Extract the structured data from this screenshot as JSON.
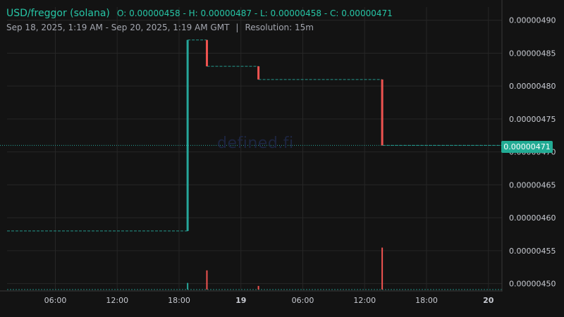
{
  "header": {
    "pair": "USD/freggor (solana)",
    "ohlc": "O: 0.00000458 - H: 0.00000487 - L: 0.00000458 - C: 0.00000471",
    "range": "Sep 18, 2025, 1:19 AM - Sep 20, 2025, 1:19 AM GMT",
    "separator": "|",
    "resolution": "Resolution: 15m"
  },
  "watermark": "defined.fi",
  "last_price_label": "0.00000471",
  "colors": {
    "background": "#131313",
    "up": "#26a69a",
    "down": "#ef5350",
    "grid": "#262626",
    "price_tag": "#22ab94"
  },
  "chart_data": {
    "type": "candlestick",
    "y_axis": {
      "ticks": [
        "0.00000450",
        "0.00000455",
        "0.00000460",
        "0.00000465",
        "0.00000470",
        "0.00000475",
        "0.00000480",
        "0.00000485",
        "0.00000490"
      ],
      "range": [
        4.49e-06,
        4.92e-06
      ]
    },
    "x_axis": {
      "ticks": [
        "06:00",
        "12:00",
        "18:00",
        "19",
        "06:00",
        "12:00",
        "18:00",
        "20"
      ],
      "range_hours": [
        1.317,
        49.317
      ]
    },
    "last_price": 4.71e-06,
    "candles": [
      {
        "t": 18.83,
        "open": 4.58e-06,
        "high": 4.87e-06,
        "low": 4.58e-06,
        "close": 4.87e-06,
        "volume": 0.055
      },
      {
        "t": 20.7,
        "open": 4.87e-06,
        "high": 4.87e-06,
        "low": 4.83e-06,
        "close": 4.83e-06,
        "volume": 0.16
      },
      {
        "t": 25.7,
        "open": 4.83e-06,
        "high": 4.83e-06,
        "low": 4.81e-06,
        "close": 4.81e-06,
        "volume": 0.03
      },
      {
        "t": 37.7,
        "open": 4.81e-06,
        "high": 4.81e-06,
        "low": 4.71e-06,
        "close": 4.71e-06,
        "volume": 0.35
      }
    ],
    "flat_segments": [
      {
        "from": 1.317,
        "to": 18.83,
        "price": 4.58e-06
      },
      {
        "from": 18.83,
        "to": 20.7,
        "price": 4.87e-06
      },
      {
        "from": 20.7,
        "to": 25.7,
        "price": 4.83e-06
      },
      {
        "from": 25.7,
        "to": 37.7,
        "price": 4.81e-06
      },
      {
        "from": 37.7,
        "to": 49.317,
        "price": 4.71e-06
      }
    ]
  }
}
